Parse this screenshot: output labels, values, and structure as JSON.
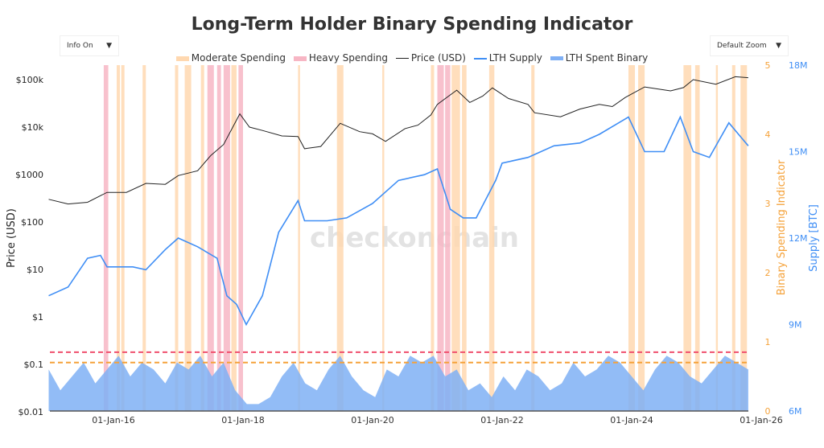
{
  "controls": {
    "info_label": "Info On",
    "zoom_label": "Default Zoom",
    "caret": "▼"
  },
  "watermark": "checkonchain",
  "colors": {
    "moderate": "#ffd8b0",
    "heavy": "#f7b6c4",
    "price": "#222222",
    "supply": "#3f8ef5",
    "spent": "#7fb0f5",
    "orange": "#f5a23a",
    "pink": "#f0506e"
  },
  "chart_data": {
    "type": "line",
    "title": "Long-Term Holder Binary Spending Indicator",
    "legend": [
      "Moderate Spending",
      "Heavy Spending",
      "Price (USD)",
      "LTH Supply",
      "LTH Spent Binary"
    ],
    "legend_position": "top",
    "x_ticks": [
      "01-Jan-16",
      "01-Jan-18",
      "01-Jan-20",
      "01-Jan-22",
      "01-Jan-24",
      "01-Jan-26"
    ],
    "xlim": [
      2015.0,
      2025.8
    ],
    "y_left": {
      "label": "Price (USD)",
      "scale": "log",
      "ticks": [
        "$0.01",
        "$0.1",
        "$1",
        "$10",
        "$100",
        "$1000",
        "$10k",
        "$100k"
      ],
      "range": [
        0.01,
        100000
      ]
    },
    "y_right1": {
      "label": "Binary Spending Indicator",
      "ticks": [
        "0",
        "1",
        "2",
        "3",
        "4",
        "5"
      ],
      "range": [
        0,
        5
      ]
    },
    "y_right2": {
      "label": "Supply [BTC]",
      "ticks": [
        "6M",
        "9M",
        "12M",
        "15M",
        "18M"
      ],
      "range": [
        6,
        18
      ]
    },
    "thresholds": {
      "heavy": 0.85,
      "moderate": 0.7
    },
    "price": [
      [
        2015.0,
        300
      ],
      [
        2015.3,
        240
      ],
      [
        2015.6,
        260
      ],
      [
        2015.9,
        420
      ],
      [
        2016.2,
        420
      ],
      [
        2016.5,
        650
      ],
      [
        2016.8,
        620
      ],
      [
        2017.0,
        950
      ],
      [
        2017.3,
        1200
      ],
      [
        2017.5,
        2500
      ],
      [
        2017.7,
        4300
      ],
      [
        2017.95,
        19000
      ],
      [
        2018.1,
        10000
      ],
      [
        2018.3,
        8500
      ],
      [
        2018.6,
        6500
      ],
      [
        2018.85,
        6300
      ],
      [
        2018.95,
        3500
      ],
      [
        2019.2,
        3900
      ],
      [
        2019.5,
        12000
      ],
      [
        2019.8,
        8000
      ],
      [
        2020.0,
        7200
      ],
      [
        2020.2,
        5000
      ],
      [
        2020.5,
        9300
      ],
      [
        2020.7,
        11000
      ],
      [
        2020.9,
        18000
      ],
      [
        2021.0,
        30000
      ],
      [
        2021.3,
        60000
      ],
      [
        2021.5,
        33000
      ],
      [
        2021.7,
        45000
      ],
      [
        2021.85,
        67000
      ],
      [
        2022.1,
        40000
      ],
      [
        2022.4,
        30000
      ],
      [
        2022.5,
        20000
      ],
      [
        2022.9,
        16500
      ],
      [
        2023.2,
        24000
      ],
      [
        2023.5,
        30000
      ],
      [
        2023.7,
        27000
      ],
      [
        2023.9,
        42000
      ],
      [
        2024.2,
        70000
      ],
      [
        2024.6,
        58000
      ],
      [
        2024.8,
        68000
      ],
      [
        2024.95,
        100000
      ],
      [
        2025.3,
        80000
      ],
      [
        2025.6,
        115000
      ],
      [
        2025.8,
        110000
      ]
    ],
    "lth_supply": [
      [
        2015.0,
        10.0
      ],
      [
        2015.3,
        10.3
      ],
      [
        2015.6,
        11.3
      ],
      [
        2015.8,
        11.4
      ],
      [
        2015.9,
        11.0
      ],
      [
        2016.3,
        11.0
      ],
      [
        2016.5,
        10.9
      ],
      [
        2016.8,
        11.6
      ],
      [
        2017.0,
        12.0
      ],
      [
        2017.3,
        11.7
      ],
      [
        2017.6,
        11.3
      ],
      [
        2017.75,
        10.0
      ],
      [
        2017.9,
        9.7
      ],
      [
        2018.05,
        9.0
      ],
      [
        2018.3,
        10.0
      ],
      [
        2018.55,
        12.2
      ],
      [
        2018.85,
        13.3
      ],
      [
        2018.95,
        12.6
      ],
      [
        2019.3,
        12.6
      ],
      [
        2019.6,
        12.7
      ],
      [
        2020.0,
        13.2
      ],
      [
        2020.4,
        14.0
      ],
      [
        2020.8,
        14.2
      ],
      [
        2021.0,
        14.4
      ],
      [
        2021.2,
        13.0
      ],
      [
        2021.4,
        12.7
      ],
      [
        2021.6,
        12.7
      ],
      [
        2021.9,
        14.0
      ],
      [
        2022.0,
        14.6
      ],
      [
        2022.4,
        14.8
      ],
      [
        2022.8,
        15.2
      ],
      [
        2023.2,
        15.3
      ],
      [
        2023.5,
        15.6
      ],
      [
        2023.8,
        16.0
      ],
      [
        2023.95,
        16.2
      ],
      [
        2024.2,
        15.0
      ],
      [
        2024.5,
        15.0
      ],
      [
        2024.75,
        16.2
      ],
      [
        2024.95,
        15.0
      ],
      [
        2025.2,
        14.8
      ],
      [
        2025.5,
        16.0
      ],
      [
        2025.65,
        15.6
      ],
      [
        2025.8,
        15.2
      ]
    ],
    "lth_spent_binary": [
      0.6,
      0.3,
      0.5,
      0.7,
      0.4,
      0.6,
      0.8,
      0.5,
      0.7,
      0.6,
      0.4,
      0.7,
      0.6,
      0.8,
      0.5,
      0.7,
      0.3,
      0.1,
      0.1,
      0.2,
      0.5,
      0.7,
      0.4,
      0.3,
      0.6,
      0.8,
      0.5,
      0.3,
      0.2,
      0.6,
      0.5,
      0.8,
      0.7,
      0.8,
      0.5,
      0.6,
      0.3,
      0.4,
      0.2,
      0.5,
      0.3,
      0.6,
      0.5,
      0.3,
      0.4,
      0.7,
      0.5,
      0.6,
      0.8,
      0.7,
      0.5,
      0.3,
      0.6,
      0.8,
      0.7,
      0.5,
      0.4,
      0.6,
      0.8,
      0.7,
      0.6
    ],
    "bands": [
      [
        2015.85,
        2015.92,
        "heavy"
      ],
      [
        2016.05,
        2016.1,
        "moderate"
      ],
      [
        2016.12,
        2016.17,
        "moderate"
      ],
      [
        2016.45,
        2016.5,
        "moderate"
      ],
      [
        2016.95,
        2017.0,
        "moderate"
      ],
      [
        2017.1,
        2017.2,
        "moderate"
      ],
      [
        2017.35,
        2017.4,
        "moderate"
      ],
      [
        2017.45,
        2017.55,
        "heavy"
      ],
      [
        2017.6,
        2017.66,
        "heavy"
      ],
      [
        2017.7,
        2017.8,
        "heavy"
      ],
      [
        2017.82,
        2017.9,
        "moderate"
      ],
      [
        2017.93,
        2018.0,
        "heavy"
      ],
      [
        2018.85,
        2018.88,
        "moderate"
      ],
      [
        2019.45,
        2019.55,
        "moderate"
      ],
      [
        2020.15,
        2020.18,
        "moderate"
      ],
      [
        2020.9,
        2020.95,
        "moderate"
      ],
      [
        2021.0,
        2021.1,
        "heavy"
      ],
      [
        2021.12,
        2021.2,
        "heavy"
      ],
      [
        2021.22,
        2021.35,
        "moderate"
      ],
      [
        2021.38,
        2021.45,
        "moderate"
      ],
      [
        2021.8,
        2021.88,
        "moderate"
      ],
      [
        2022.45,
        2022.5,
        "moderate"
      ],
      [
        2023.95,
        2024.05,
        "moderate"
      ],
      [
        2024.1,
        2024.2,
        "moderate"
      ],
      [
        2024.8,
        2024.92,
        "moderate"
      ],
      [
        2024.98,
        2025.05,
        "moderate"
      ],
      [
        2025.3,
        2025.33,
        "moderate"
      ],
      [
        2025.55,
        2025.6,
        "moderate"
      ],
      [
        2025.68,
        2025.78,
        "moderate"
      ]
    ]
  }
}
